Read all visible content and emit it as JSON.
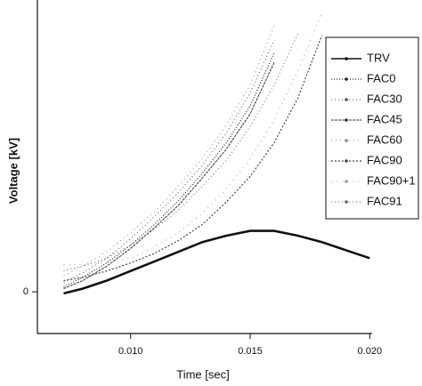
{
  "chart_data": {
    "type": "line",
    "x_label": "Time [sec]",
    "y_label": "Voltage [kV]",
    "x": [
      0.0072,
      0.008,
      0.009,
      0.01,
      0.011,
      0.012,
      0.013,
      0.014,
      0.015,
      0.016,
      0.017,
      0.018,
      0.019,
      0.02
    ],
    "series": [
      {
        "name": "TRV",
        "color": "#111111",
        "values": [
          -0.1,
          0.2,
          0.7,
          1.3,
          1.9,
          2.5,
          3.1,
          3.5,
          3.8,
          3.8,
          3.5,
          3.1,
          2.6,
          2.1
        ]
      },
      {
        "name": "FAC0",
        "color": "#222222",
        "values": [
          0.3,
          0.9,
          1.8,
          2.9,
          4.2,
          5.7,
          7.4,
          9.3,
          11.6,
          14.9,
          null,
          null,
          null,
          null
        ]
      },
      {
        "name": "FAC30",
        "color": "#555555",
        "values": [
          0.6,
          1.2,
          2.1,
          3.3,
          4.7,
          6.2,
          7.9,
          9.9,
          12.4,
          15.7,
          null,
          null,
          null,
          null
        ]
      },
      {
        "name": "FAC45",
        "color": "#333333",
        "values": [
          0.2,
          0.7,
          1.6,
          2.7,
          4.0,
          5.4,
          7.1,
          8.9,
          11.1,
          14.3,
          null,
          null,
          null,
          null
        ]
      },
      {
        "name": "FAC60",
        "color": "#888888",
        "values": [
          1.0,
          1.6,
          2.5,
          3.7,
          5.0,
          6.6,
          8.3,
          10.4,
          12.9,
          16.6,
          null,
          null,
          null,
          null
        ]
      },
      {
        "name": "FAC90",
        "color": "#444444",
        "values": [
          0.7,
          0.9,
          1.3,
          1.8,
          2.4,
          3.2,
          4.2,
          5.6,
          7.2,
          9.3,
          12.1,
          16.0,
          null,
          null
        ]
      },
      {
        "name": "FAC90+1",
        "color": "#999999",
        "values": [
          1.7,
          1.7,
          1.8,
          2.1,
          2.8,
          3.7,
          4.9,
          6.4,
          8.3,
          10.7,
          13.8,
          17.4,
          null,
          null
        ]
      },
      {
        "name": "FAC91",
        "color": "#666666",
        "values": [
          1.3,
          1.6,
          2.1,
          2.9,
          3.9,
          5.1,
          6.6,
          8.2,
          10.3,
          12.9,
          16.1,
          null,
          null,
          null
        ]
      }
    ],
    "xlim": [
      0.0061,
      0.0201
    ],
    "ylim": [
      -2.6,
      18.2
    ],
    "xticks": [
      {
        "value": 0.01,
        "label": "0.010"
      },
      0.015,
      {
        "value": 0.02,
        "label": "0.020"
      }
    ],
    "yticks": [
      0
    ],
    "grid": false,
    "legend": "upper right"
  }
}
